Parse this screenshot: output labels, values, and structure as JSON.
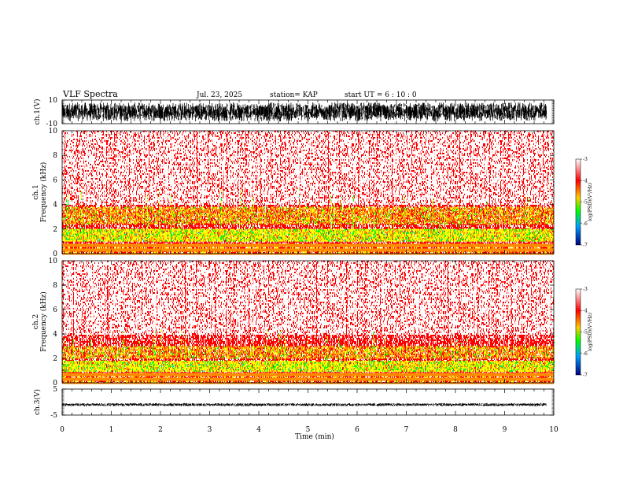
{
  "header": {
    "title": "VLF Spectra",
    "date": "Jul. 23, 2025",
    "station": "station= KAP",
    "start_ut": "start UT =  6 : 10 : 0"
  },
  "colors": {
    "spectrogram_base": "#ffffff",
    "spectrogram_red": "#ff0000",
    "band_yellow": "#ffff00",
    "band_green": "#00ff00"
  },
  "chart_data": [
    {
      "type": "line",
      "name": "ch1-waveform",
      "ylabel": "ch.1(V)",
      "ylim": [
        -10,
        10
      ],
      "yticks": [
        "10",
        "-10"
      ],
      "xlim": [
        0,
        10
      ],
      "x_extent_min": 9.85,
      "amplitude_range_v": [
        -8,
        8
      ]
    },
    {
      "type": "heatmap",
      "name": "ch1-spectrogram",
      "ylabel": "ch.1\nFrequency (kHz)",
      "ylim": [
        0,
        10
      ],
      "yticks": [
        "0",
        "2",
        "4",
        "6",
        "8",
        "10"
      ],
      "xlim": [
        0,
        10
      ],
      "colorbar": {
        "label": "log(PSD)(V²/Hz)",
        "range": [
          -7,
          -3
        ],
        "ticks": [
          "-3",
          "-4",
          "-5",
          "-6",
          "-7"
        ]
      },
      "bands_khz": [
        {
          "from": 0,
          "to": 0.8,
          "level": "striped"
        },
        {
          "from": 1.0,
          "to": 2.0,
          "level": "yellow-green"
        },
        {
          "from": 2.5,
          "to": 3.8,
          "level": "orange-yellow"
        }
      ]
    },
    {
      "type": "heatmap",
      "name": "ch2-spectrogram",
      "ylabel": "ch.2\nFrequency (kHz)",
      "ylim": [
        0,
        10
      ],
      "yticks": [
        "0",
        "2",
        "4",
        "6",
        "8",
        "10"
      ],
      "xlim": [
        0,
        10
      ],
      "colorbar": {
        "label": "log(PSD)(V²/Hz)",
        "range": [
          -7,
          -3
        ],
        "ticks": [
          "-3",
          "-4",
          "-5",
          "-6",
          "-7"
        ]
      },
      "bands_khz": [
        {
          "from": 0,
          "to": 0.8,
          "level": "striped"
        },
        {
          "from": 1.0,
          "to": 1.8,
          "level": "yellow-green"
        },
        {
          "from": 2.0,
          "to": 3.0,
          "level": "orange-yellow"
        }
      ]
    },
    {
      "type": "line",
      "name": "ch3-waveform",
      "ylabel": "ch.3(V)",
      "ylim": [
        -5,
        5
      ],
      "yticks": [
        "5",
        "-5"
      ],
      "xlim": [
        0,
        10
      ],
      "x_extent_min": 9.85,
      "offset_v": -1.0,
      "amplitude_range_v": [
        -1.6,
        -0.4
      ]
    }
  ],
  "xaxis": {
    "label": "Time (min)",
    "ticks": [
      "0",
      "1",
      "2",
      "3",
      "4",
      "5",
      "6",
      "7",
      "8",
      "9",
      "10"
    ]
  }
}
